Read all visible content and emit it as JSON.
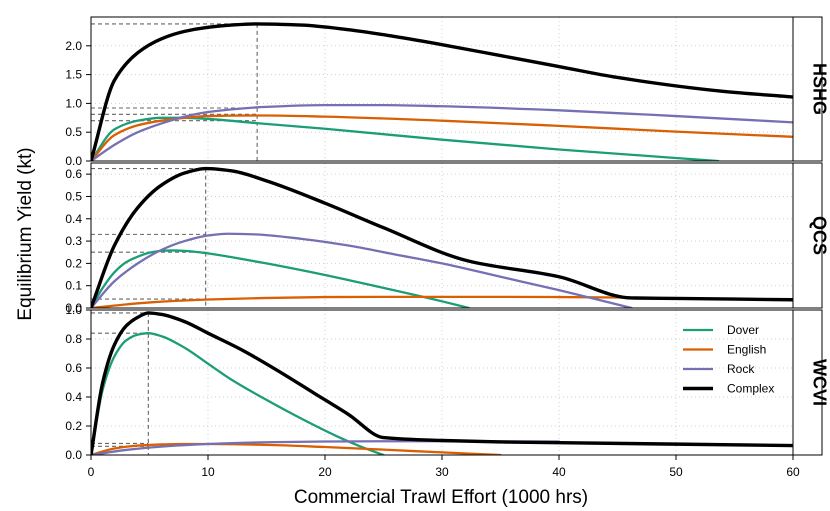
{
  "chart_data": {
    "type": "line",
    "xlabel": "Commercial Trawl Effort (1000 hrs)",
    "ylabel": "Equilibrium Yield (kt)",
    "xlim": [
      0,
      60
    ],
    "x_ticks": [
      "0",
      "10",
      "20",
      "30",
      "40",
      "50",
      "60"
    ],
    "grid": true,
    "legend": {
      "placement": "top-right of bottom panel",
      "entries": [
        {
          "name": "Dover",
          "color": "#1b9e77"
        },
        {
          "name": "English",
          "color": "#d95f02"
        },
        {
          "name": "Rock",
          "color": "#7570b3"
        },
        {
          "name": "Complex",
          "color": "#000000"
        }
      ]
    },
    "panels": [
      {
        "label": "HSHG",
        "ylim": [
          0,
          2.5
        ],
        "y_ticks": [
          "0.0",
          "0.5",
          "1.0",
          "1.5",
          "2.0"
        ],
        "reference": {
          "x": 14.2,
          "levels": [
            2.38,
            0.92,
            0.81,
            0.7
          ]
        },
        "series": [
          {
            "name": "Dover",
            "color": "#1b9e77",
            "x": [
              0,
              2,
              4,
              6,
              8,
              10,
              14,
              20,
              30,
              40,
              53.6
            ],
            "y": [
              0,
              0.55,
              0.7,
              0.75,
              0.75,
              0.73,
              0.66,
              0.56,
              0.37,
              0.2,
              0.0
            ]
          },
          {
            "name": "English",
            "color": "#d95f02",
            "x": [
              0,
              2,
              4,
              6,
              8,
              10,
              15,
              20,
              30,
              40,
              50,
              60
            ],
            "y": [
              0,
              0.45,
              0.62,
              0.7,
              0.75,
              0.78,
              0.79,
              0.77,
              0.7,
              0.61,
              0.51,
              0.42
            ]
          },
          {
            "name": "Rock",
            "color": "#7570b3",
            "x": [
              0,
              2,
              4,
              6,
              8,
              10,
              15,
              20,
              25,
              30,
              40,
              50,
              60
            ],
            "y": [
              0,
              0.28,
              0.5,
              0.65,
              0.77,
              0.85,
              0.94,
              0.97,
              0.97,
              0.95,
              0.88,
              0.78,
              0.67
            ]
          },
          {
            "name": "Complex",
            "color": "#000000",
            "x": [
              0,
              2,
              4,
              6,
              8,
              10,
              12,
              14.2,
              18,
              22,
              26,
              30,
              35,
              40,
              45,
              54,
              60
            ],
            "y": [
              0,
              1.4,
              1.88,
              2.12,
              2.25,
              2.32,
              2.36,
              2.38,
              2.36,
              2.28,
              2.16,
              2.02,
              1.83,
              1.64,
              1.45,
              1.21,
              1.11
            ]
          }
        ]
      },
      {
        "label": "QCS",
        "ylim": [
          0,
          0.65
        ],
        "y_ticks": [
          "0.0",
          "0.1",
          "0.2",
          "0.3",
          "0.4",
          "0.5",
          "0.6"
        ],
        "reference": {
          "x": 9.8,
          "levels": [
            0.625,
            0.33,
            0.25,
            0.04
          ]
        },
        "series": [
          {
            "name": "Dover",
            "color": "#1b9e77",
            "x": [
              0,
              1,
              2,
              3,
              4,
              5,
              6,
              7,
              8,
              10,
              12,
              15,
              20,
              25,
              30,
              32.3
            ],
            "y": [
              0,
              0.09,
              0.16,
              0.205,
              0.23,
              0.248,
              0.256,
              0.258,
              0.256,
              0.245,
              0.228,
              0.2,
              0.148,
              0.09,
              0.03,
              0.0
            ]
          },
          {
            "name": "English",
            "color": "#d95f02",
            "x": [
              0,
              5,
              10,
              15,
              20,
              25,
              30,
              35,
              40,
              45,
              47
            ],
            "y": [
              0,
              0.025,
              0.038,
              0.045,
              0.049,
              0.05,
              0.05,
              0.05,
              0.049,
              0.047,
              0.045
            ]
          },
          {
            "name": "Rock",
            "color": "#7570b3",
            "x": [
              0,
              2,
              4,
              6,
              8,
              10,
              11.7,
              14,
              18,
              22,
              26,
              30,
              35,
              40,
              46.2
            ],
            "y": [
              0,
              0.12,
              0.2,
              0.26,
              0.3,
              0.325,
              0.333,
              0.33,
              0.31,
              0.28,
              0.24,
              0.2,
              0.14,
              0.08,
              0.0
            ]
          },
          {
            "name": "Complex",
            "color": "#000000",
            "x": [
              0,
              2,
              4,
              6,
              8,
              9.8,
              12,
              15,
              20,
              25,
              32.3,
              40,
              46.2,
              50,
              55,
              60
            ],
            "y": [
              0,
              0.28,
              0.45,
              0.55,
              0.605,
              0.625,
              0.615,
              0.57,
              0.47,
              0.36,
              0.21,
              0.14,
              0.045,
              0.043,
              0.04,
              0.037
            ]
          }
        ]
      },
      {
        "label": "WCVI",
        "ylim": [
          0,
          1.0
        ],
        "y_ticks": [
          "0.0",
          "0.2",
          "0.4",
          "0.6",
          "0.8",
          "1.0"
        ],
        "reference": {
          "x": 4.9,
          "levels": [
            0.98,
            0.84,
            0.08,
            0.06
          ]
        },
        "series": [
          {
            "name": "Dover",
            "color": "#1b9e77",
            "x": [
              0,
              1,
              2,
              3,
              4,
              4.9,
              6,
              8,
              10,
              12,
              15,
              18,
              21,
              23,
              25
            ],
            "y": [
              0,
              0.45,
              0.68,
              0.79,
              0.83,
              0.84,
              0.82,
              0.74,
              0.63,
              0.52,
              0.38,
              0.25,
              0.13,
              0.06,
              0.0
            ]
          },
          {
            "name": "English",
            "color": "#d95f02",
            "x": [
              0,
              2,
              4,
              6,
              8,
              10,
              15,
              20,
              25,
              30,
              35
            ],
            "y": [
              0,
              0.045,
              0.065,
              0.073,
              0.076,
              0.076,
              0.07,
              0.055,
              0.037,
              0.018,
              0.0
            ]
          },
          {
            "name": "Rock",
            "color": "#7570b3",
            "x": [
              0,
              3,
              6,
              10,
              15,
              20,
              25,
              30,
              35,
              40
            ],
            "y": [
              0,
              0.035,
              0.058,
              0.076,
              0.088,
              0.093,
              0.095,
              0.095,
              0.094,
              0.093
            ]
          },
          {
            "name": "Complex",
            "color": "#000000",
            "x": [
              0,
              1,
              2,
              3,
              4,
              4.9,
              6,
              8,
              10,
              13,
              16,
              19,
              22,
              25,
              30,
              35,
              40,
              50,
              60
            ],
            "y": [
              0,
              0.5,
              0.76,
              0.89,
              0.95,
              0.98,
              0.97,
              0.92,
              0.84,
              0.72,
              0.58,
              0.43,
              0.28,
              0.12,
              0.1,
              0.09,
              0.085,
              0.075,
              0.065
            ]
          }
        ]
      }
    ]
  }
}
